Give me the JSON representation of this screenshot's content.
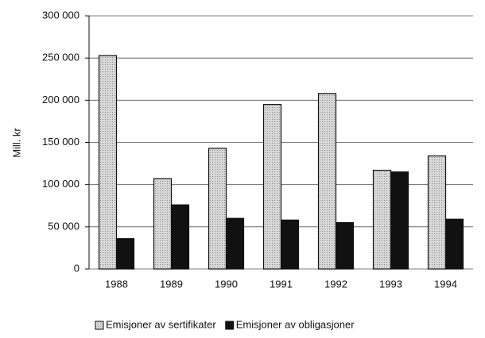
{
  "chart_data": {
    "type": "bar",
    "y_label": "Mill. kr",
    "categories": [
      "1988",
      "1989",
      "1990",
      "1991",
      "1992",
      "1993",
      "1994"
    ],
    "series": [
      {
        "name": "Emisjoner av sertifikater",
        "color": "#c8c8c8",
        "values": [
          253000,
          107000,
          143000,
          195000,
          208000,
          117000,
          134000
        ]
      },
      {
        "name": "Emisjoner av obligasjoner",
        "color": "#111111",
        "values": [
          36000,
          76000,
          60000,
          58000,
          55000,
          115000,
          59000
        ]
      }
    ],
    "ylim": [
      0,
      300000
    ],
    "yticks": [
      0,
      {
        "value": 50000,
        "label": "50 000"
      },
      {
        "value": 100000,
        "label": "100 000"
      },
      {
        "value": 150000,
        "label": "150 000"
      },
      {
        "value": 200000,
        "label": "200 000"
      },
      {
        "value": 250000,
        "label": "250 000"
      },
      {
        "value": 300000,
        "label": "300 000"
      }
    ],
    "grid": true,
    "legend": "bottom"
  }
}
